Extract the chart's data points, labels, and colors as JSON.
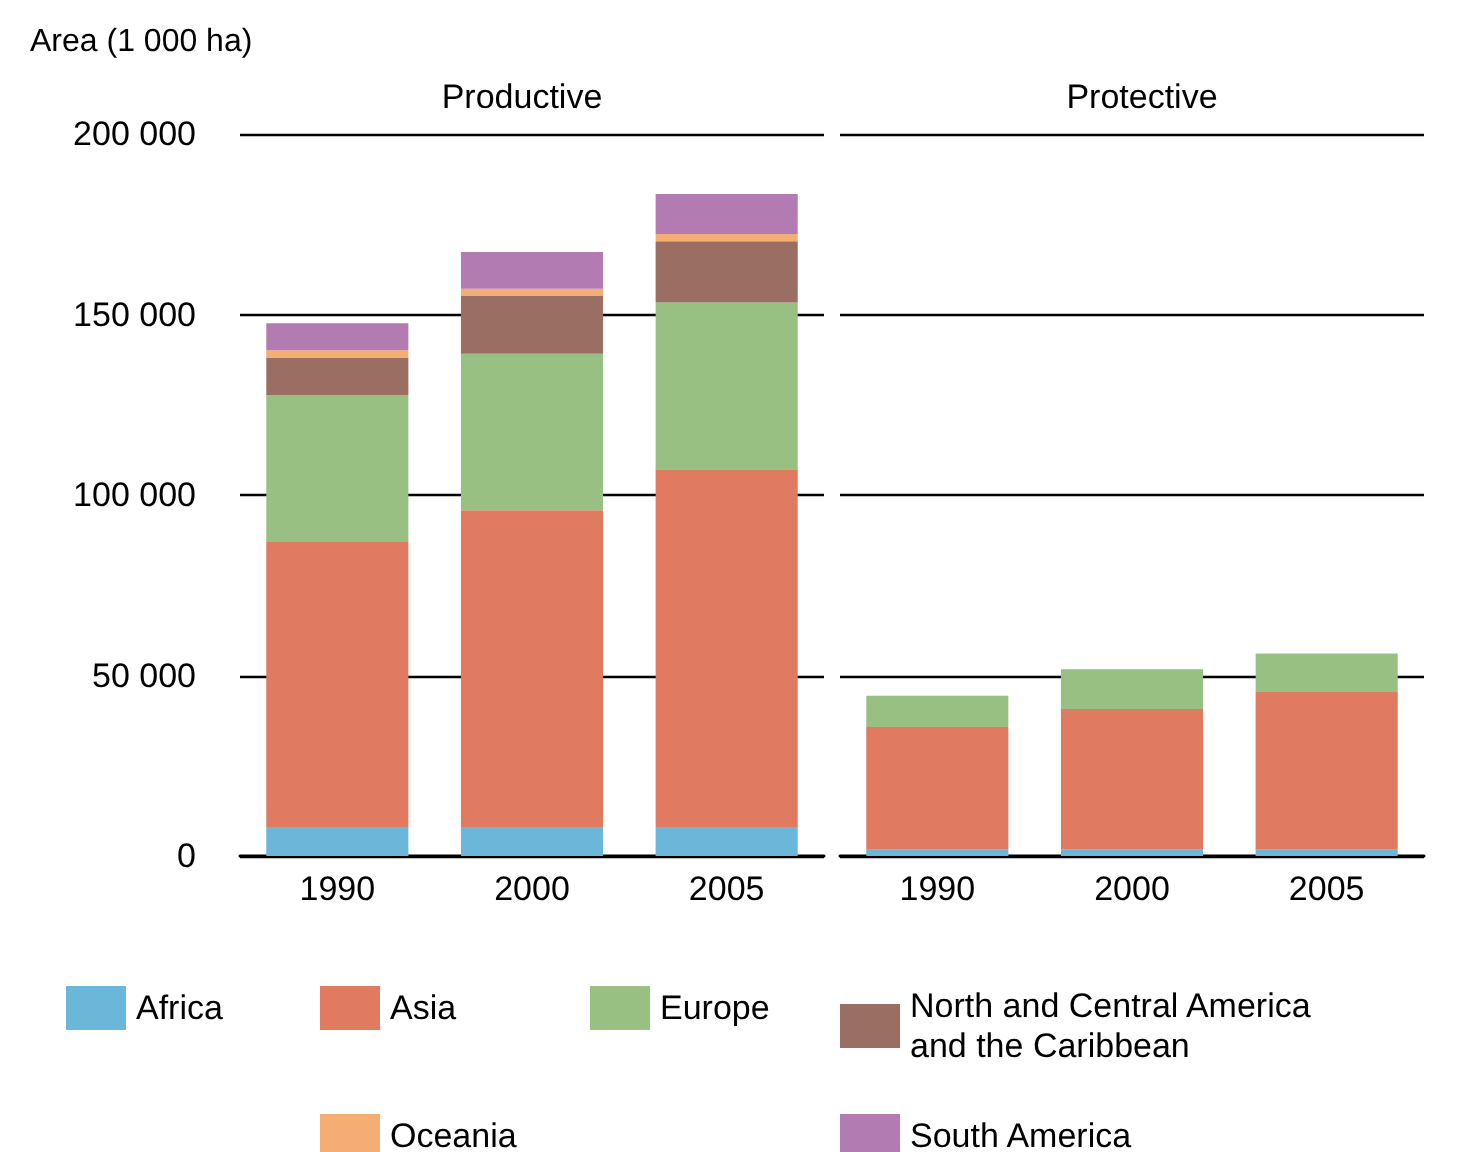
{
  "chart_data": [
    {
      "type": "bar",
      "title": "Productive",
      "ylabel": "Area (1 000 ha)",
      "categories": [
        "1990",
        "2000",
        "2005"
      ],
      "stacked": true,
      "grid": "y",
      "legend": "bottom",
      "ylim": [
        0,
        200000
      ],
      "yticks": [
        0,
        {
          "value": 50000,
          "label": "50 000"
        },
        {
          "value": 100000,
          "label": "100 000"
        },
        {
          "value": 150000,
          "label": "150 000"
        },
        {
          "value": 200000,
          "label": "200 000"
        }
      ],
      "series": [
        {
          "name": "Africa",
          "color": "#6bb7d9",
          "values": [
            8000,
            8000,
            8000
          ]
        },
        {
          "name": "Asia",
          "color": "#e07b62",
          "values": [
            79000,
            87800,
            99100
          ]
        },
        {
          "name": "Europe",
          "color": "#99c083",
          "values": [
            40700,
            43300,
            46200
          ]
        },
        {
          "name": "North and Central America and the Caribbean",
          "color": "#9a6e62",
          "values": [
            10400,
            16000,
            17000
          ]
        },
        {
          "name": "Oceania",
          "color": "#f4ad72",
          "values": [
            2000,
            2000,
            2000
          ]
        },
        {
          "name": "South America",
          "color": "#b27bb2",
          "values": [
            7500,
            10200,
            11100
          ]
        }
      ]
    },
    {
      "type": "bar",
      "title": "Protective",
      "categories": [
        "1990",
        "2000",
        "2005"
      ],
      "stacked": true,
      "grid": "y",
      "tick_labels": "x",
      "ylim": [
        0,
        200000
      ],
      "yticks": [
        0,
        50000,
        100000,
        150000,
        200000
      ],
      "series": [
        {
          "color": "#6bb7d9",
          "values": [
            1700,
            1700,
            1700
          ]
        },
        {
          "color": "#e07b62",
          "values": [
            34000,
            39000,
            43700
          ]
        },
        {
          "color": "#99c083",
          "values": [
            8700,
            11000,
            10700
          ]
        },
        {
          "color": "#9a6e62",
          "values": [
            0,
            0,
            0
          ]
        },
        {
          "color": "#f4ad72",
          "values": [
            0,
            0,
            0
          ]
        },
        {
          "color": "#b27bb2",
          "values": [
            0,
            0,
            0
          ]
        }
      ]
    }
  ]
}
